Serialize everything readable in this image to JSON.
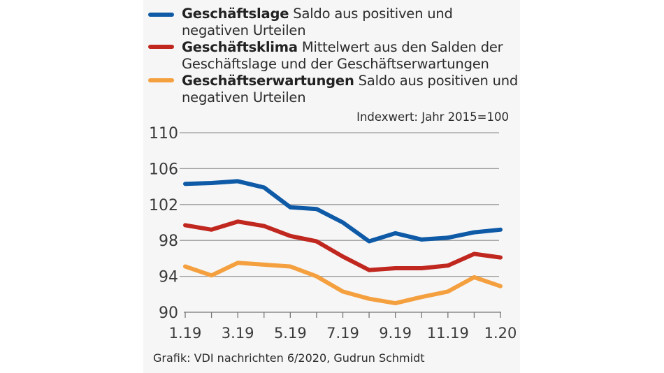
{
  "legend": [
    {
      "bold": "Geschäftslage",
      "text": " Saldo aus positiven und",
      "text2": "negativen Urteilen",
      "color": "#0e5aa7"
    },
    {
      "bold": "Geschäftsklima",
      "text": " Mittelwert aus den Salden der",
      "text2": "Geschäftslage und der Geschäftserwartungen",
      "color": "#c0271f"
    },
    {
      "bold": "Geschäftserwartungen",
      "text": " Saldo aus positiven und",
      "text2": "negativen Urteilen",
      "color": "#f5a03f"
    }
  ],
  "unit_note": "Indexwert: Jahr 2015=100",
  "credit": "Grafik: VDI nachrichten 6/2020, Gudrun Schmidt",
  "chart_data": {
    "type": "line",
    "title": "",
    "xlabel": "",
    "ylabel": "Indexwert: Jahr 2015=100",
    "x": [
      "1.19",
      "2.19",
      "3.19",
      "4.19",
      "5.19",
      "6.19",
      "7.19",
      "8.19",
      "9.19",
      "10.19",
      "11.19",
      "12.19",
      "1.20"
    ],
    "x_tick_labels": [
      "1.19",
      "",
      "3.19",
      "",
      "5.19",
      "",
      "7.19",
      "",
      "9.19",
      "",
      "11.19",
      "",
      "1.20"
    ],
    "ylim": [
      90,
      110
    ],
    "y_ticks": [
      90,
      94,
      98,
      102,
      106,
      110
    ],
    "grid": true,
    "legend_position": "top",
    "series": [
      {
        "name": "Geschäftslage",
        "color": "#0e5aa7",
        "values": [
          104.3,
          104.4,
          104.6,
          103.9,
          101.7,
          101.5,
          100.0,
          97.9,
          98.8,
          98.1,
          98.3,
          98.9,
          99.2
        ]
      },
      {
        "name": "Geschäftsklima",
        "color": "#c0271f",
        "values": [
          99.7,
          99.2,
          100.1,
          99.6,
          98.5,
          97.9,
          96.2,
          94.7,
          94.9,
          94.9,
          95.2,
          96.5,
          96.1
        ]
      },
      {
        "name": "Geschäftserwartungen",
        "color": "#f5a03f",
        "values": [
          95.1,
          94.1,
          95.5,
          95.3,
          95.1,
          94.0,
          92.3,
          91.5,
          91.0,
          91.7,
          92.3,
          93.9,
          92.9
        ]
      }
    ]
  }
}
